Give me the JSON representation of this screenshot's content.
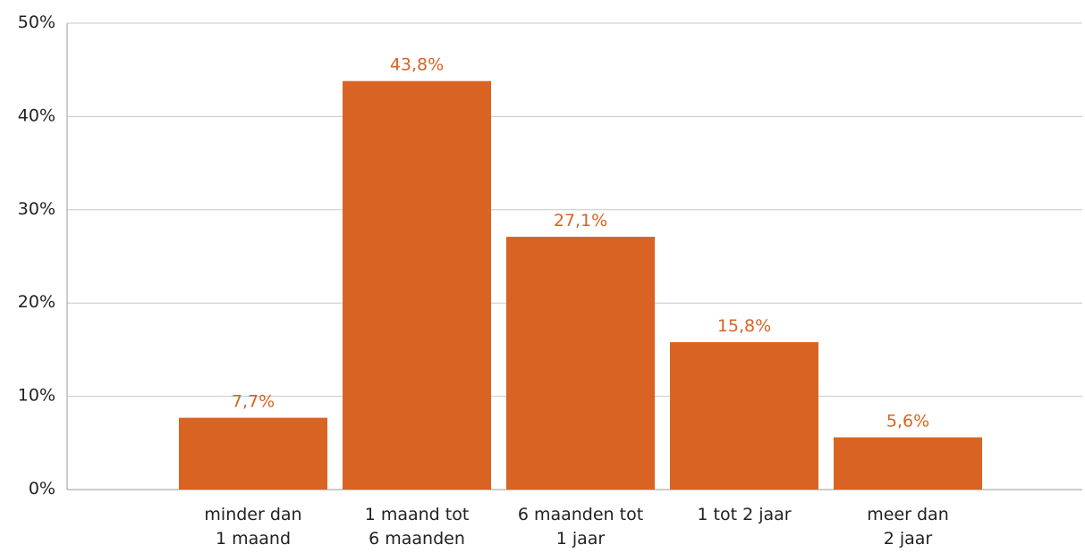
{
  "chart_data": {
    "type": "bar",
    "categories": [
      "minder dan\n1 maand",
      "1 maand tot\n6 maanden",
      "6 maanden tot\n1 jaar",
      "1 tot 2 jaar",
      "meer dan\n2 jaar"
    ],
    "values": [
      7.7,
      43.8,
      27.1,
      15.8,
      5.6
    ],
    "value_labels": [
      "7,7%",
      "43,8%",
      "27,1%",
      "15,8%",
      "5,6%"
    ],
    "color": "#d96322",
    "ylim": [
      0,
      50
    ],
    "yticks": [
      {
        "value": 0,
        "label": "0%"
      },
      {
        "value": 10,
        "label": "10%"
      },
      {
        "value": 20,
        "label": "20%"
      },
      {
        "value": 30,
        "label": "30%"
      },
      {
        "value": 40,
        "label": "40%"
      },
      {
        "value": 50,
        "label": "50%"
      }
    ],
    "grid": true
  }
}
